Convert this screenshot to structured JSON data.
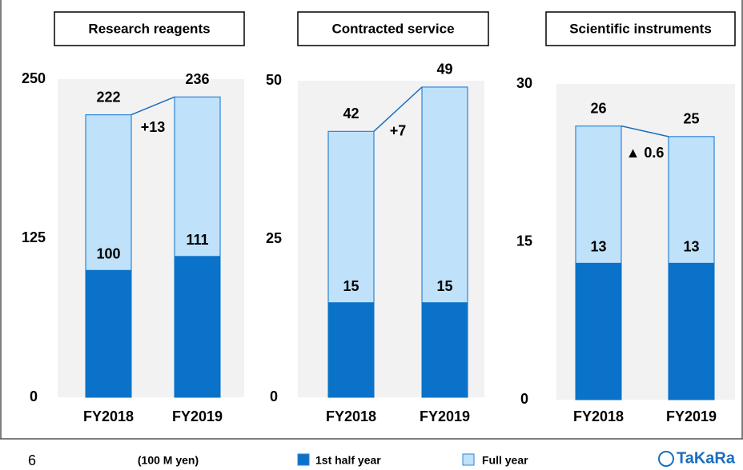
{
  "chart_data": [
    {
      "type": "bar",
      "title": "Research reagents",
      "categories": [
        "FY2018",
        "FY2019"
      ],
      "series": [
        {
          "name": "1st half year",
          "color": "#0a72c8",
          "values": [
            100,
            111
          ]
        },
        {
          "name": "Full year",
          "color": "#bfe1fa",
          "values": [
            222,
            236
          ]
        }
      ],
      "annotation": "+13",
      "ylim": [
        0,
        250
      ],
      "yticks": [
        0,
        125,
        250
      ]
    },
    {
      "type": "bar",
      "title": "Contracted service",
      "categories": [
        "FY2018",
        "FY2019"
      ],
      "series": [
        {
          "name": "1st half year",
          "color": "#0a72c8",
          "values": [
            15,
            15
          ]
        },
        {
          "name": "Full year",
          "color": "#bfe1fa",
          "values": [
            42,
            49
          ]
        }
      ],
      "annotation": "+7",
      "ylim": [
        0,
        50
      ],
      "yticks": [
        0,
        25,
        50
      ]
    },
    {
      "type": "bar",
      "title": "Scientific instruments",
      "categories": [
        "FY2018",
        "FY2019"
      ],
      "series": [
        {
          "name": "1st half year",
          "color": "#0a72c8",
          "values": [
            13,
            13
          ]
        },
        {
          "name": "Full year",
          "color": "#bfe1fa",
          "values": [
            26,
            25
          ]
        }
      ],
      "annotation": "▲ 0.6",
      "ylim": [
        0,
        30
      ],
      "yticks": [
        0,
        15,
        30
      ]
    }
  ],
  "footer": {
    "page_number": "6",
    "unit": "(100 M yen)",
    "logo": "TaKaRa"
  }
}
